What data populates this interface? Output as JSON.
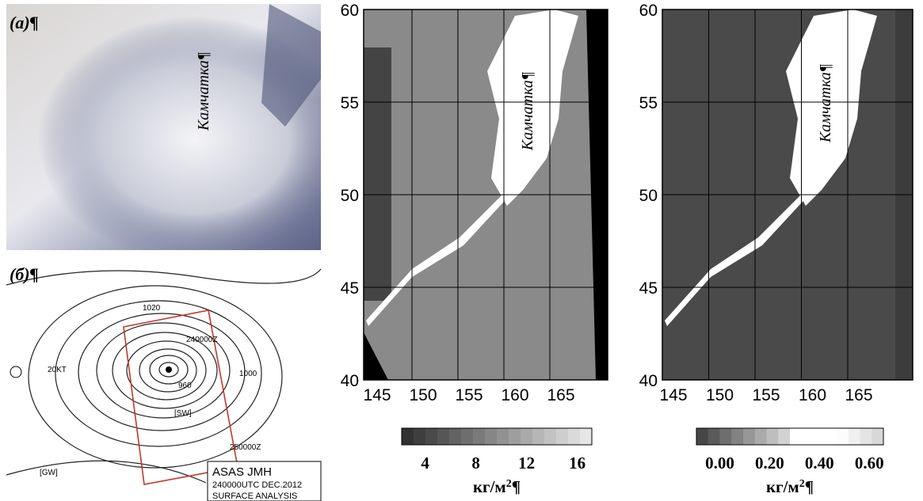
{
  "panel_a": {
    "label": "(a)¶",
    "annotation": "Камчатка¶"
  },
  "panel_b": {
    "label": "(б)¶",
    "contour_labels": [
      "1020",
      "960",
      "1000",
      "20KT",
      "[SW]",
      "[GW]",
      "250000Z",
      "240000Z"
    ],
    "stamp": [
      "ASAS    JMH",
      "240000UTC DEC.2012",
      "SURFACE ANALYSIS"
    ]
  },
  "maps": [
    {
      "annotation": "Камчатка¶",
      "xticks": [
        145,
        150,
        155,
        160,
        165
      ],
      "yticks": [
        40,
        45,
        50,
        55,
        60
      ],
      "colorbar": {
        "ticks": [
          4,
          8,
          12,
          16
        ],
        "unit": "кг/м",
        "unit_sup": "2",
        "unit_tail": "¶"
      }
    },
    {
      "annotation": "Камчатка¶",
      "xticks": [
        145,
        150,
        155,
        160,
        165
      ],
      "yticks": [
        40,
        45,
        50,
        55,
        60
      ],
      "colorbar": {
        "ticks": [
          "0.00",
          "0.20",
          "0.40",
          "0.60"
        ],
        "unit": "кг/м",
        "unit_sup": "2",
        "unit_tail": "¶"
      }
    }
  ]
}
